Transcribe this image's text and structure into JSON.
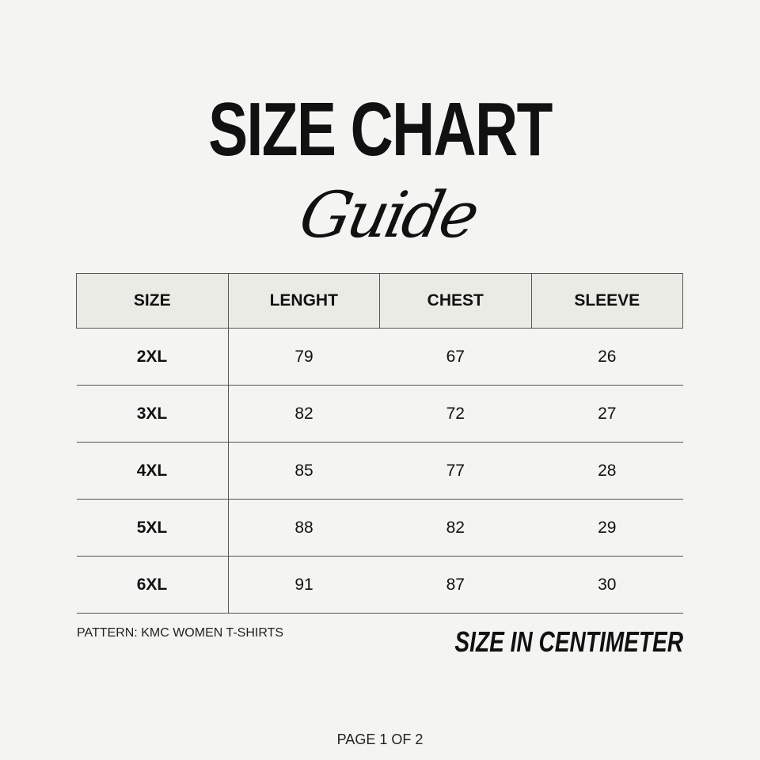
{
  "title": "SIZE CHART",
  "subtitle": "Guide",
  "table": {
    "headers": [
      "SIZE",
      "LENGHT",
      "CHEST",
      "SLEEVE"
    ],
    "rows": [
      [
        "2XL",
        "79",
        "67",
        "26"
      ],
      [
        "3XL",
        "82",
        "72",
        "27"
      ],
      [
        "4XL",
        "85",
        "77",
        "28"
      ],
      [
        "5XL",
        "88",
        "82",
        "29"
      ],
      [
        "6XL",
        "91",
        "87",
        "30"
      ]
    ]
  },
  "pattern": "PATTERN: KMC WOMEN T-SHIRTS",
  "unit_note": "SIZE IN CENTIMETER",
  "page_indicator": "PAGE 1 OF 2",
  "colors": {
    "background": "#f4f4f2",
    "header_fill": "#ebebe6",
    "text": "#111111"
  }
}
